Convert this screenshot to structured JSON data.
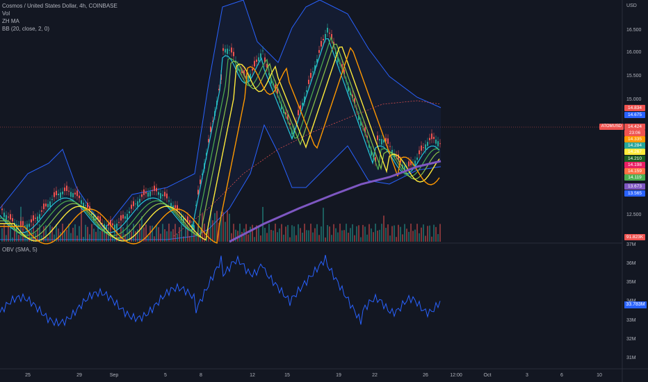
{
  "header": {
    "symbol_line": "Cosmos / United States Dollar, 4h, COINBASE",
    "indicators": [
      "Vol",
      "ZH MA",
      "BB (20, close, 2, 0)"
    ],
    "obv_label": "OBV (SMA, 5)"
  },
  "price_axis": {
    "currency": "USD",
    "labels": [
      "16.500",
      "16.000",
      "15.500",
      "15.000",
      "12.500"
    ]
  },
  "obv_axis": {
    "labels": [
      "37M",
      "36M",
      "35M",
      "34M",
      "33M",
      "32M",
      "31M"
    ]
  },
  "time_axis": {
    "labels": [
      "25",
      "29",
      "Sep",
      "5",
      "8",
      "12",
      "15",
      "19",
      "22",
      "26",
      "12:00",
      "Oct",
      "3",
      "6",
      "10"
    ]
  },
  "price_badges": [
    {
      "value": "14.834",
      "color": "#ef5350"
    },
    {
      "value": "14.675",
      "color": "#2962ff"
    },
    {
      "value": "14.424",
      "color": "#ef5350"
    },
    {
      "value": "23:06",
      "color": "#ef5350"
    },
    {
      "value": "14.335",
      "color": "#ff9800"
    },
    {
      "value": "14.284",
      "color": "#26a69a"
    },
    {
      "value": "14.267",
      "color": "#ffeb3b"
    },
    {
      "value": "14.210",
      "color": "#1b5e20"
    },
    {
      "value": "14.198",
      "color": "#e91e63"
    },
    {
      "value": "14.159",
      "color": "#ff7043"
    },
    {
      "value": "14.119",
      "color": "#4caf50"
    },
    {
      "value": "13.673",
      "color": "#7e57c2"
    },
    {
      "value": "13.565",
      "color": "#2962ff"
    }
  ],
  "ticker_tag": "ATOMUSD",
  "volume_badge": "91.823K",
  "obv_value": "33.783M",
  "colors": {
    "background": "#131722",
    "bb_band": "#2962ff",
    "ma_purple": "#7e57c2",
    "up": "#26a69a",
    "down": "#ef5350"
  }
}
